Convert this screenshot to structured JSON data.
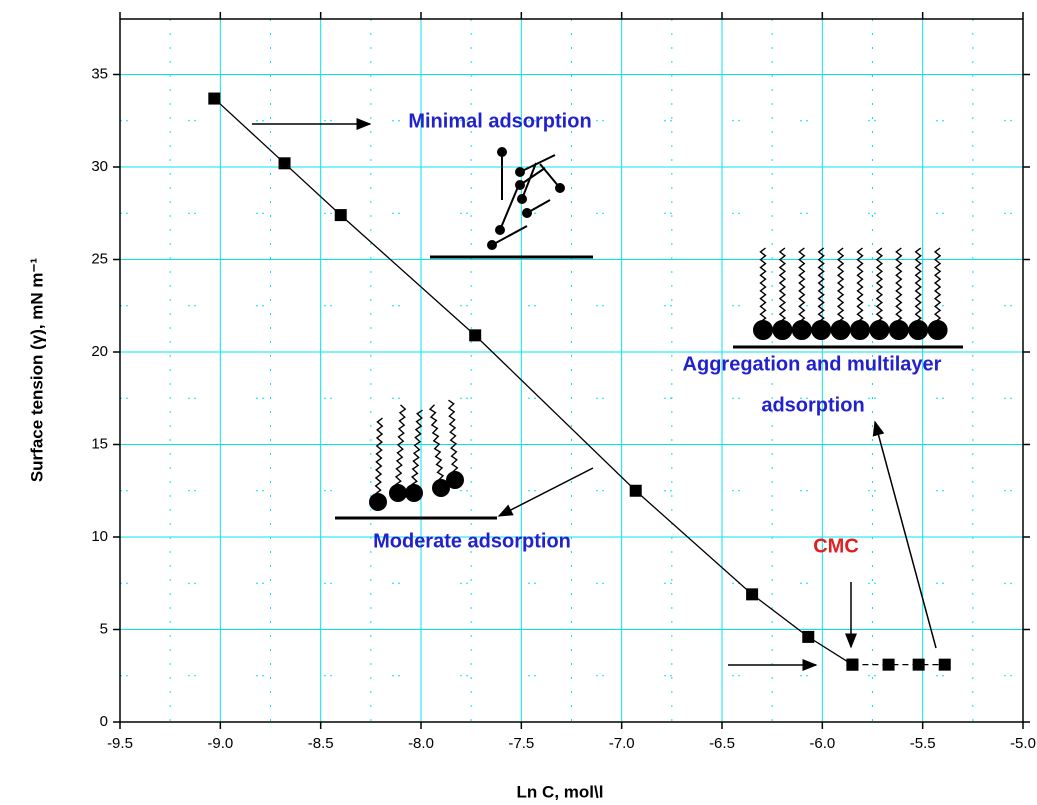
{
  "chart_data": {
    "type": "line",
    "x_label": "Ln C, mol\\l",
    "y_label": "Surface tension (γ), mN m⁻¹",
    "xlim": [
      -9.5,
      -5.0
    ],
    "xticks": [
      -9.5,
      {
        "value": -9,
        "label": "-9.0"
      },
      -8.5,
      {
        "value": -8,
        "label": "-8.0"
      },
      -7.5,
      {
        "value": -7,
        "label": "-7.0"
      },
      -6.5,
      {
        "value": -6,
        "label": "-6.0"
      },
      -5.5,
      {
        "value": -5,
        "label": "-5.0"
      }
    ],
    "ylim": [
      0,
      38
    ],
    "yticks": [
      0,
      5,
      10,
      15,
      20,
      25,
      30,
      35
    ],
    "grid": true,
    "grid_color": "#00e5f0",
    "series": [
      {
        "color": "#000000",
        "linestyle": "solid",
        "x": [
          -9.03,
          -8.68,
          -8.4,
          -7.73,
          -6.93,
          -6.35,
          -6.07,
          -5.85
        ],
        "values": [
          33.7,
          30.2,
          27.4,
          20.9,
          12.5,
          6.9,
          4.6,
          3.1
        ]
      },
      {
        "color": "#000000",
        "linestyle": "dashed",
        "x": [
          -5.85,
          -5.67,
          -5.52,
          -5.39
        ],
        "values": [
          3.1,
          3.1,
          3.1,
          3.1
        ]
      }
    ],
    "annotations": [
      {
        "text": "Minimal adsorption",
        "color": "#2222cc"
      },
      {
        "text": "Aggregation and multilayer",
        "color": "#2222cc"
      },
      {
        "text": "adsorption",
        "color": "#2222cc"
      },
      {
        "text": "Moderate adsorption",
        "color": "#2222cc"
      },
      {
        "text": "CMC",
        "color": "#e02020"
      }
    ]
  }
}
